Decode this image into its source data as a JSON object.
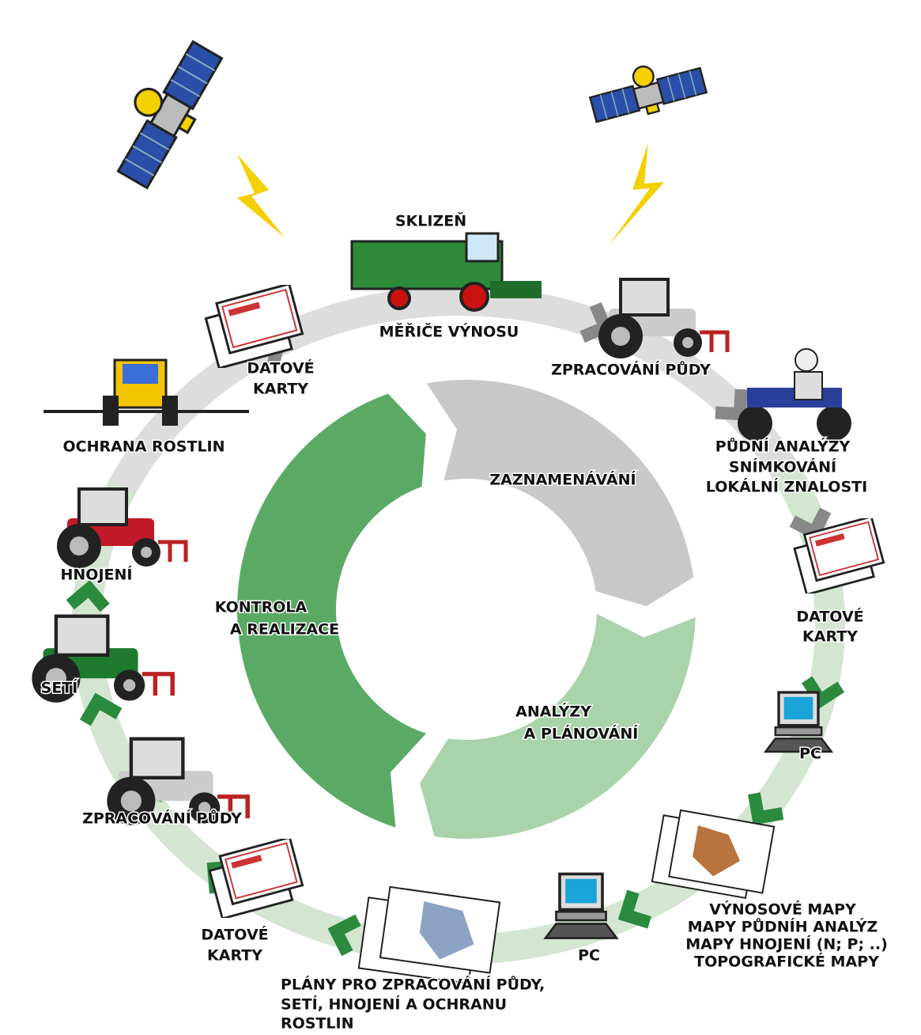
{
  "outer_labels": [
    {
      "lines": [
        "SKLIZEŇ"
      ]
    },
    {
      "lines": [
        "MĚŘIČE VÝNOSU"
      ]
    },
    {
      "lines": [
        "ZPRACOVÁNÍ PŮDY"
      ]
    },
    {
      "lines": [
        "PŮDNÍ ANALÝZY",
        "SNÍMKOVÁNÍ",
        "LOKÁLNÍ ZNALOSTI"
      ]
    },
    {
      "lines": [
        "DATOVÉ",
        "KARTY"
      ]
    },
    {
      "lines": [
        "PC"
      ]
    },
    {
      "lines": [
        "VÝNOSOVÉ MAPY",
        "MAPY PŮDNÍH ANALÝZ",
        "MAPY HNOJENÍ (N; P; ..)",
        "TOPOGRAFICKÉ MAPY"
      ]
    },
    {
      "lines": [
        "PC"
      ]
    },
    {
      "lines": [
        "PLÁNY PRO ZPRACOVÁNÍ PŮDY,",
        "SETÍ, HNOJENÍ A OCHRANU",
        "ROSTLIN"
      ]
    },
    {
      "lines": [
        "DATOVÉ",
        "KARTY"
      ]
    },
    {
      "lines": [
        "ZPRACOVÁNÍ PŮDY"
      ]
    },
    {
      "lines": [
        "SETÍ"
      ]
    },
    {
      "lines": [
        "HNOJENÍ"
      ]
    },
    {
      "lines": [
        "OCHRANA ROSTLIN"
      ]
    },
    {
      "lines": [
        "DATOVÉ",
        "KARTY"
      ]
    }
  ],
  "cycle": [
    {
      "lines": [
        "ZAZNAMENÁVÁNÍ"
      ]
    },
    {
      "lines": [
        "ANALÝZY",
        "A PLÁNOVÁNÍ"
      ]
    },
    {
      "lines": [
        "KONTROLA",
        "A REALIZACE"
      ]
    }
  ]
}
